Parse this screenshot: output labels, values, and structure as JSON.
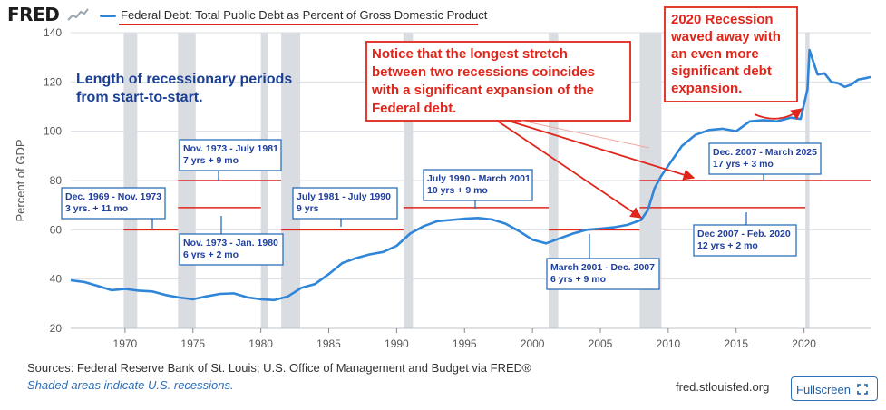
{
  "header": {
    "logo_text": "FRED",
    "logo_icon": "fred-sparkline-icon",
    "series_title": "Federal Debt: Total Public Debt as Percent of Gross Domestic Product",
    "series_color": "#2f86d9",
    "underline_color": "#e0251b"
  },
  "footer": {
    "sources": "Sources: Federal Reserve Bank of St. Louis; U.S. Office of Management and Budget via FRED®",
    "shading_note": "Shaded areas indicate U.S. recessions.",
    "site": "fred.stlouisfed.org",
    "fullscreen_label": "Fullscreen",
    "fullscreen_icon": "fullscreen-icon"
  },
  "chart_data": {
    "type": "line",
    "title": "Federal Debt: Total Public Debt as Percent of Gross Domestic Product",
    "ylabel": "Percent of GDP",
    "xlabel": "",
    "xlim": [
      1966,
      2024.9
    ],
    "ylim": [
      20,
      140
    ],
    "yticks": [
      20,
      40,
      60,
      80,
      100,
      120,
      140
    ],
    "xticks": [
      1970,
      1975,
      1980,
      1985,
      1990,
      1995,
      2000,
      2005,
      2010,
      2015,
      2020
    ],
    "grid": "horizontal",
    "colors": {
      "line": "#2f86d9",
      "recession": "#d9dde2",
      "annotation": "#e0251b",
      "box_border": "#2c6fb8",
      "box_text": "#1f3f9e"
    },
    "recessions": [
      [
        1969.9,
        1970.9
      ],
      [
        1973.9,
        1975.2
      ],
      [
        1980.0,
        1980.5
      ],
      [
        1981.5,
        1982.9
      ],
      [
        1990.5,
        1991.2
      ],
      [
        2001.2,
        2001.9
      ],
      [
        2007.9,
        2009.5
      ],
      [
        2020.1,
        2020.4
      ]
    ],
    "series": [
      {
        "name": "Federal Debt: Total Public Debt as Percent of Gross Domestic Product",
        "x": [
          1966,
          1967,
          1968,
          1969,
          1970,
          1971,
          1972,
          1973,
          1974,
          1975,
          1976,
          1977,
          1978,
          1979,
          1980,
          1981,
          1982,
          1983,
          1984,
          1985,
          1986,
          1987,
          1988,
          1989,
          1990,
          1991,
          1992,
          1993,
          1994,
          1995,
          1996,
          1997,
          1998,
          1999,
          2000,
          2001,
          2002,
          2003,
          2004,
          2005,
          2006,
          2007,
          2008,
          2008.5,
          2009,
          2009.5,
          2010,
          2011,
          2012,
          2013,
          2014,
          2015,
          2016,
          2017,
          2018,
          2019,
          2019.75,
          2020.25,
          2020.4,
          2020.75,
          2021,
          2021.5,
          2022,
          2022.5,
          2023,
          2023.5,
          2024,
          2024.5,
          2024.9
        ],
        "y": [
          39.5,
          38.8,
          37.2,
          35.5,
          36.0,
          35.3,
          35.0,
          33.5,
          32.5,
          31.8,
          33.0,
          34.0,
          34.2,
          32.6,
          31.8,
          31.5,
          33.0,
          36.5,
          38.0,
          42.0,
          46.5,
          48.5,
          50.0,
          51.0,
          53.5,
          58.5,
          61.5,
          63.5,
          64.0,
          64.5,
          64.8,
          64.2,
          62.5,
          59.5,
          56.0,
          54.5,
          56.5,
          58.5,
          60.0,
          60.5,
          61.0,
          62.0,
          64.0,
          68.0,
          77.0,
          82.0,
          86.0,
          94.0,
          98.5,
          100.5,
          101.0,
          100.0,
          104.0,
          104.5,
          104.0,
          105.5,
          105.0,
          117.0,
          133.0,
          127.0,
          123.0,
          123.5,
          120.0,
          119.5,
          118.0,
          119.0,
          121.0,
          121.5,
          122.0
        ]
      }
    ],
    "annotations": {
      "intro": {
        "lines": [
          "Length of recessionary periods",
          "from start-to-start."
        ]
      },
      "notice": {
        "lines": [
          "Notice that the longest stretch",
          "between two recessions coincides",
          "with a significant expansion of the",
          "Federal debt."
        ]
      },
      "recession2020": {
        "lines": [
          "2020 Recession",
          "waved away with",
          "an even more",
          "significant debt",
          "expansion."
        ]
      },
      "boxes": [
        {
          "lines": [
            "Dec. 1969 - Nov. 1973",
            "3 yrs. + 11 mo"
          ],
          "span": [
            1969.9,
            1973.9
          ],
          "level": 60
        },
        {
          "lines": [
            "Nov. 1973 - July 1981",
            "7 yrs + 9 mo"
          ],
          "span": [
            1973.9,
            1981.5
          ],
          "level": 80
        },
        {
          "lines": [
            "Nov. 1973 - Jan. 1980",
            "6 yrs + 2 mo"
          ],
          "span": [
            1973.9,
            1980.0
          ],
          "level": 69
        },
        {
          "lines": [
            "July 1981 - July 1990",
            "9 yrs"
          ],
          "span": [
            1981.5,
            1990.5
          ],
          "level": 60
        },
        {
          "lines": [
            "July 1990 - March 2001",
            "10 yrs + 9 mo"
          ],
          "span": [
            1990.5,
            2001.2
          ],
          "level": 69
        },
        {
          "lines": [
            "March 2001 - Dec. 2007",
            "6 yrs + 9 mo"
          ],
          "span": [
            2001.2,
            2007.9
          ],
          "level": 60
        },
        {
          "lines": [
            "Dec. 2007 - March 2025",
            "17 yrs + 3 mo"
          ],
          "span": [
            2007.9,
            2025.2
          ],
          "level": 80
        },
        {
          "lines": [
            "Dec 2007 - Feb. 2020",
            "12 yrs + 2 mo"
          ],
          "span": [
            2007.9,
            2020.1
          ],
          "level": 69
        }
      ]
    }
  }
}
